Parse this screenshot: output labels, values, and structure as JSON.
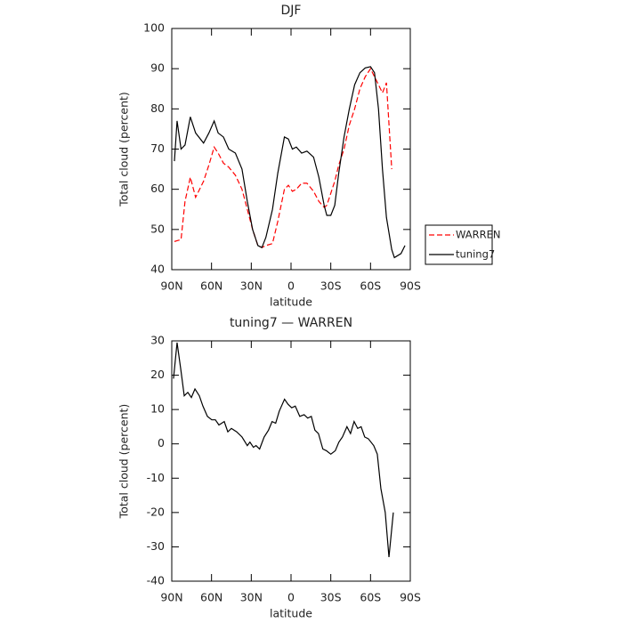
{
  "chart_data": [
    {
      "type": "line",
      "title": "DJF",
      "xlabel": "latitude",
      "ylabel": "Total cloud (percent)",
      "x": [
        88,
        86,
        83,
        80,
        76,
        72,
        66,
        62,
        58,
        55,
        51,
        47,
        42,
        37,
        33,
        29,
        25,
        22,
        19,
        14,
        10,
        5,
        2,
        -1,
        -4,
        -8,
        -12,
        -17,
        -21,
        -25,
        -27,
        -30,
        -33,
        -36,
        -40,
        -44,
        -48,
        -52,
        -56,
        -60,
        -63,
        -66,
        -69,
        -72,
        -76,
        -78,
        -83,
        -86
      ],
      "series": [
        {
          "name": "WARREN",
          "color": "#ff0000",
          "line_style": "dashed",
          "values": [
            47,
            47.2,
            47.5,
            57,
            63,
            58,
            62,
            66,
            70.5,
            69,
            66.5,
            65.5,
            63.5,
            60,
            55,
            50,
            46,
            45.5,
            46,
            46.5,
            52,
            60,
            61,
            59.5,
            60,
            61.5,
            61.5,
            59.5,
            57,
            55.5,
            56,
            59,
            62,
            66,
            70,
            76,
            80,
            85,
            88,
            90,
            88,
            86,
            84,
            86.5,
            65,
            null,
            null,
            null
          ]
        },
        {
          "name": "tuning7",
          "color": "#000000",
          "line_style": "solid",
          "values": [
            67,
            77,
            70,
            71,
            78,
            74,
            71.5,
            74,
            77,
            74,
            73,
            70,
            69,
            65,
            57,
            50,
            46,
            45.5,
            48,
            55,
            64,
            73,
            72.5,
            70,
            70.5,
            69,
            69.5,
            68,
            63,
            56,
            53.5,
            53.5,
            56,
            64,
            73,
            80,
            86,
            89,
            90.2,
            90.5,
            89,
            80,
            65,
            53,
            45,
            43,
            44,
            46
          ]
        }
      ],
      "xlim": [
        90,
        -90
      ],
      "xticks": [
        {
          "value": 90,
          "label": "90N"
        },
        {
          "value": 60,
          "label": "60N"
        },
        {
          "value": 30,
          "label": "30N"
        },
        0,
        {
          "value": -30,
          "label": "30S"
        },
        {
          "value": -60,
          "label": "60S"
        },
        {
          "value": -90,
          "label": "90S"
        }
      ],
      "ylim": [
        40,
        100
      ],
      "yticks": [
        40,
        50,
        60,
        70,
        80,
        90,
        100
      ],
      "legend": "outside right"
    },
    {
      "type": "line",
      "title": "tuning7 — WARREN",
      "xlabel": "latitude",
      "ylabel": "Total cloud (percent)",
      "x": [
        88.7,
        86,
        83.3,
        80.6,
        77.9,
        75.2,
        72.5,
        69.2,
        66.5,
        63.1,
        59.8,
        57.1,
        54.4,
        50.4,
        47.7,
        45,
        41,
        37,
        33,
        31,
        28.4,
        26.4,
        23.7,
        20.3,
        17,
        14.3,
        11.6,
        8.9,
        4.9,
        2.2,
        -0.5,
        -3.2,
        -6.6,
        -9.9,
        -12.6,
        -15.3,
        -18,
        -20.7,
        -24,
        -26.7,
        -30,
        -33.4,
        -36.1,
        -38.8,
        -42.2,
        -44.9,
        -47.6,
        -50.3,
        -52.9,
        -55.6,
        -58.3,
        -62.4,
        -65.1,
        -67.8,
        -71.1,
        -73.9,
        -77.2
      ],
      "series": [
        {
          "color": "#000000",
          "line_style": "solid",
          "values": [
            19,
            29.5,
            22,
            14,
            15,
            13.5,
            16,
            14,
            11,
            8,
            7,
            7,
            5.5,
            6.5,
            3.5,
            4.5,
            3.5,
            2,
            -0.5,
            0.5,
            -1,
            -0.5,
            -1.5,
            2,
            4,
            6.5,
            6,
            9.5,
            13,
            11.5,
            10.5,
            11,
            8,
            8.5,
            7.5,
            8,
            4,
            3,
            -1.5,
            -2,
            -3,
            -2,
            0.5,
            2,
            5,
            3,
            6.5,
            4.5,
            5,
            2,
            1.5,
            -0.5,
            -3,
            -13,
            -20,
            -33,
            -20
          ]
        }
      ],
      "xlim": [
        90,
        -90
      ],
      "xticks": [
        {
          "value": 90,
          "label": "90N"
        },
        {
          "value": 60,
          "label": "60N"
        },
        {
          "value": 30,
          "label": "30N"
        },
        0,
        {
          "value": -30,
          "label": "30S"
        },
        {
          "value": -60,
          "label": "60S"
        },
        {
          "value": -90,
          "label": "90S"
        }
      ],
      "ylim": [
        -40,
        30
      ],
      "yticks": [
        -40,
        -30,
        -20,
        -10,
        0,
        10,
        20,
        30
      ]
    }
  ]
}
